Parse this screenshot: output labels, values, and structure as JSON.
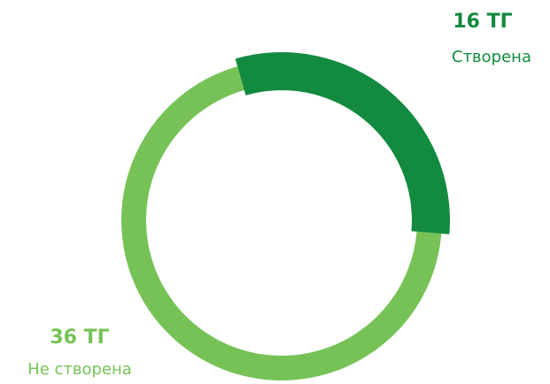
{
  "chart_data": {
    "type": "pie",
    "categories": [
      "Створена",
      "Не створена"
    ],
    "values": [
      16,
      36
    ],
    "value_labels": [
      "16 ТГ",
      "36 ТГ"
    ],
    "colors": [
      "#128a3f",
      "#76c257"
    ]
  }
}
